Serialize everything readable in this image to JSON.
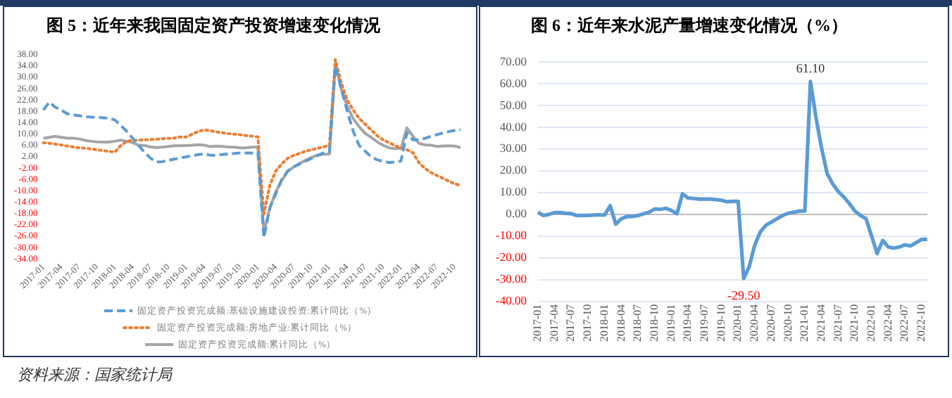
{
  "chart_data": [
    {
      "type": "line",
      "title": "图 5：近年来我国固定资产投资增速变化情况",
      "categories": [
        "2017-01",
        null,
        null,
        "2017-04",
        null,
        null,
        "2017-07",
        null,
        null,
        "2017-10",
        null,
        null,
        "2018-01",
        null,
        null,
        "2018-04",
        null,
        null,
        "2018-07",
        null,
        null,
        "2018-10",
        null,
        null,
        "2019-01",
        null,
        null,
        "2019-04",
        null,
        null,
        "2019-07",
        null,
        null,
        "2019-10",
        null,
        null,
        "2020-01",
        null,
        null,
        "2020-04",
        null,
        null,
        "2020-07",
        null,
        null,
        "2020-10",
        null,
        null,
        "2021-01",
        null,
        null,
        "2021-04",
        null,
        null,
        "2021-07",
        null,
        null,
        "2021-10",
        null,
        null,
        "2022-01",
        null,
        null,
        "2022-04",
        null,
        null,
        "2022-07",
        null,
        null,
        "2022-10",
        null
      ],
      "series": [
        {
          "name": "固定资产投资完成额:基础设施建设投资:累计同比（%）",
          "color": "#5b9bd5",
          "line_style": "dashed",
          "values": [
            18.5,
            21.3,
            19.5,
            18.5,
            17.2,
            16.8,
            16.5,
            16.2,
            16.0,
            15.9,
            15.8,
            15.6,
            15.0,
            13.0,
            11.0,
            8.5,
            6.0,
            3.5,
            1.5,
            0.2,
            0.3,
            0.8,
            1.2,
            1.6,
            2.0,
            2.4,
            2.8,
            3.0,
            2.6,
            2.6,
            2.8,
            3.0,
            3.2,
            3.4,
            3.4,
            3.3,
            3.5,
            -26.5,
            -16.0,
            -11.0,
            -6.0,
            -3.0,
            -1.5,
            -0.5,
            0.5,
            1.5,
            2.5,
            3.4,
            3.7,
            34.0,
            26.0,
            18.0,
            11.0,
            6.0,
            4.0,
            2.0,
            1.0,
            0.4,
            0.0,
            0.2,
            0.5,
            10.5,
            8.0,
            8.0,
            8.5,
            9.2,
            9.8,
            10.4,
            10.9,
            11.3,
            11.6
          ]
        },
        {
          "name": "固定资产投资完成额:房地产业:累计同比（%）",
          "color": "#ed7d31",
          "line_style": "dotted",
          "values": [
            7.0,
            6.8,
            6.5,
            6.2,
            5.8,
            5.5,
            5.2,
            5.0,
            4.8,
            4.5,
            4.2,
            3.9,
            3.7,
            6.0,
            7.5,
            7.8,
            7.9,
            8.0,
            8.1,
            8.2,
            8.4,
            8.5,
            8.6,
            9.0,
            9.0,
            10.0,
            11.0,
            11.5,
            11.2,
            10.8,
            10.5,
            10.2,
            10.0,
            9.8,
            9.5,
            9.3,
            9.0,
            -18.2,
            -8.0,
            -3.0,
            -0.5,
            1.5,
            2.5,
            3.2,
            4.0,
            4.5,
            5.0,
            5.5,
            6.0,
            36.3,
            28.0,
            22.0,
            18.5,
            15.5,
            13.5,
            11.5,
            9.5,
            8.0,
            7.0,
            6.0,
            5.0,
            4.5,
            3.5,
            0.0,
            -2.0,
            -3.5,
            -4.5,
            -5.5,
            -6.5,
            -7.5,
            -8.0
          ]
        },
        {
          "name": "固定资产投资完成额:累计同比（%）",
          "color": "#a5a5a5",
          "line_style": "solid",
          "values": [
            8.5,
            8.9,
            9.2,
            8.9,
            8.6,
            8.6,
            8.3,
            7.8,
            7.5,
            7.3,
            7.2,
            7.2,
            7.5,
            7.9,
            7.5,
            7.0,
            6.1,
            6.0,
            5.5,
            5.3,
            5.4,
            5.7,
            5.9,
            5.9,
            6.0,
            6.1,
            6.3,
            6.1,
            5.6,
            5.8,
            5.7,
            5.5,
            5.4,
            5.2,
            5.2,
            5.4,
            5.4,
            -24.5,
            -16.1,
            -10.3,
            -6.3,
            -3.1,
            -1.6,
            -0.3,
            0.8,
            1.8,
            2.6,
            2.9,
            3.0,
            35.0,
            25.6,
            19.9,
            15.4,
            12.6,
            10.3,
            8.9,
            7.3,
            6.1,
            5.2,
            4.9,
            4.9,
            12.2,
            9.3,
            6.8,
            6.2,
            6.1,
            5.7,
            5.8,
            5.9,
            5.8,
            5.3
          ]
        }
      ],
      "ylim": [
        -34,
        38
      ],
      "yticks": [
        {
          "value": 38,
          "label": "38.00"
        },
        {
          "value": 34,
          "label": "34.00"
        },
        {
          "value": 30,
          "label": "30.00"
        },
        {
          "value": 26,
          "label": "26.00"
        },
        {
          "value": 22,
          "label": "22.00"
        },
        {
          "value": 18,
          "label": "18.00"
        },
        {
          "value": 14,
          "label": "14.00"
        },
        {
          "value": 10,
          "label": "10.00"
        },
        {
          "value": 6,
          "label": "6.00"
        },
        {
          "value": 2,
          "label": "2.00"
        },
        {
          "value": -2,
          "label": "-2.00"
        },
        {
          "value": -6,
          "label": "-6.00"
        },
        {
          "value": -10,
          "label": "-10.00"
        },
        {
          "value": -14,
          "label": "-14.00"
        },
        {
          "value": -18,
          "label": "-18.00"
        },
        {
          "value": -22,
          "label": "-22.00"
        },
        {
          "value": -26,
          "label": "-26.00"
        },
        {
          "value": -30,
          "label": "-30.00"
        },
        {
          "value": -34,
          "label": "-34.00"
        }
      ],
      "legend": "bottom",
      "annotations": [
        "资料来源：国家统计局"
      ]
    },
    {
      "type": "line",
      "title": "图 6：近年来水泥产量增速变化情况（%）",
      "categories": [
        "2017-01",
        null,
        null,
        "2017-04",
        null,
        null,
        "2017-07",
        null,
        null,
        "2017-10",
        null,
        null,
        "2018-01",
        null,
        null,
        "2018-04",
        null,
        null,
        "2018-07",
        null,
        null,
        "2018-10",
        null,
        null,
        "2019-01",
        null,
        null,
        "2019-04",
        null,
        null,
        "2019-07",
        null,
        null,
        "2019-10",
        null,
        null,
        "2020-01",
        null,
        null,
        "2020-04",
        null,
        null,
        "2020-07",
        null,
        null,
        "2020-10",
        null,
        null,
        "2021-01",
        null,
        null,
        "2021-04",
        null,
        null,
        "2021-07",
        null,
        null,
        "2021-10",
        null,
        null,
        "2022-01",
        null,
        null,
        "2022-04",
        null,
        null,
        "2022-07",
        null,
        null,
        "2022-10",
        null
      ],
      "series": [
        {
          "color": "#5b9bd5",
          "line_style": "solid",
          "values": [
            1.0,
            -0.5,
            0.0,
            0.8,
            0.8,
            0.5,
            0.3,
            -0.5,
            -0.5,
            -0.5,
            -0.3,
            -0.2,
            -0.3,
            4.0,
            -4.5,
            -2.0,
            -1.0,
            -1.0,
            -0.5,
            0.3,
            1.0,
            2.5,
            2.3,
            2.8,
            1.8,
            0.3,
            9.5,
            7.5,
            7.3,
            7.0,
            7.0,
            7.0,
            6.8,
            6.5,
            5.8,
            6.0,
            6.0,
            -29.5,
            -24.0,
            -14.0,
            -8.0,
            -5.0,
            -3.5,
            -2.0,
            -0.5,
            0.5,
            1.0,
            1.5,
            1.5,
            61.1,
            44.5,
            30.5,
            18.8,
            14.0,
            10.5,
            8.0,
            5.0,
            1.5,
            -0.5,
            -2.0,
            -10.0,
            -18.0,
            -12.0,
            -15.0,
            -15.5,
            -15.0,
            -14.0,
            -14.5,
            -13.0,
            -11.5,
            -11.5
          ],
          "value_labels": [
            null,
            null,
            null,
            null,
            null,
            null,
            null,
            null,
            null,
            null,
            null,
            null,
            null,
            null,
            null,
            null,
            null,
            null,
            null,
            null,
            null,
            null,
            null,
            null,
            null,
            null,
            null,
            null,
            null,
            null,
            null,
            null,
            null,
            null,
            null,
            null,
            null,
            "-29.50",
            null,
            null,
            null,
            null,
            null,
            null,
            null,
            null,
            null,
            null,
            null,
            "61.10",
            null,
            null,
            null,
            null,
            null,
            null,
            null,
            null,
            null,
            null,
            null,
            null,
            null,
            null,
            null,
            null,
            null,
            null,
            null,
            null,
            null
          ]
        }
      ],
      "ylim": [
        -40,
        70
      ],
      "yticks": [
        {
          "value": 70,
          "label": "70.00"
        },
        {
          "value": 60,
          "label": "60.00"
        },
        {
          "value": 50,
          "label": "50.00"
        },
        {
          "value": 40,
          "label": "40.00"
        },
        {
          "value": 30,
          "label": "30.00"
        },
        {
          "value": 20,
          "label": "20.00"
        },
        {
          "value": 10,
          "label": "10.00"
        },
        {
          "value": 0,
          "label": "0.00"
        },
        {
          "value": -10,
          "label": "-10.00"
        },
        {
          "value": -20,
          "label": "-20.00"
        },
        {
          "value": -30,
          "label": "-30.00"
        },
        {
          "value": -40,
          "label": "-40.00"
        }
      ],
      "grid": "y"
    }
  ]
}
